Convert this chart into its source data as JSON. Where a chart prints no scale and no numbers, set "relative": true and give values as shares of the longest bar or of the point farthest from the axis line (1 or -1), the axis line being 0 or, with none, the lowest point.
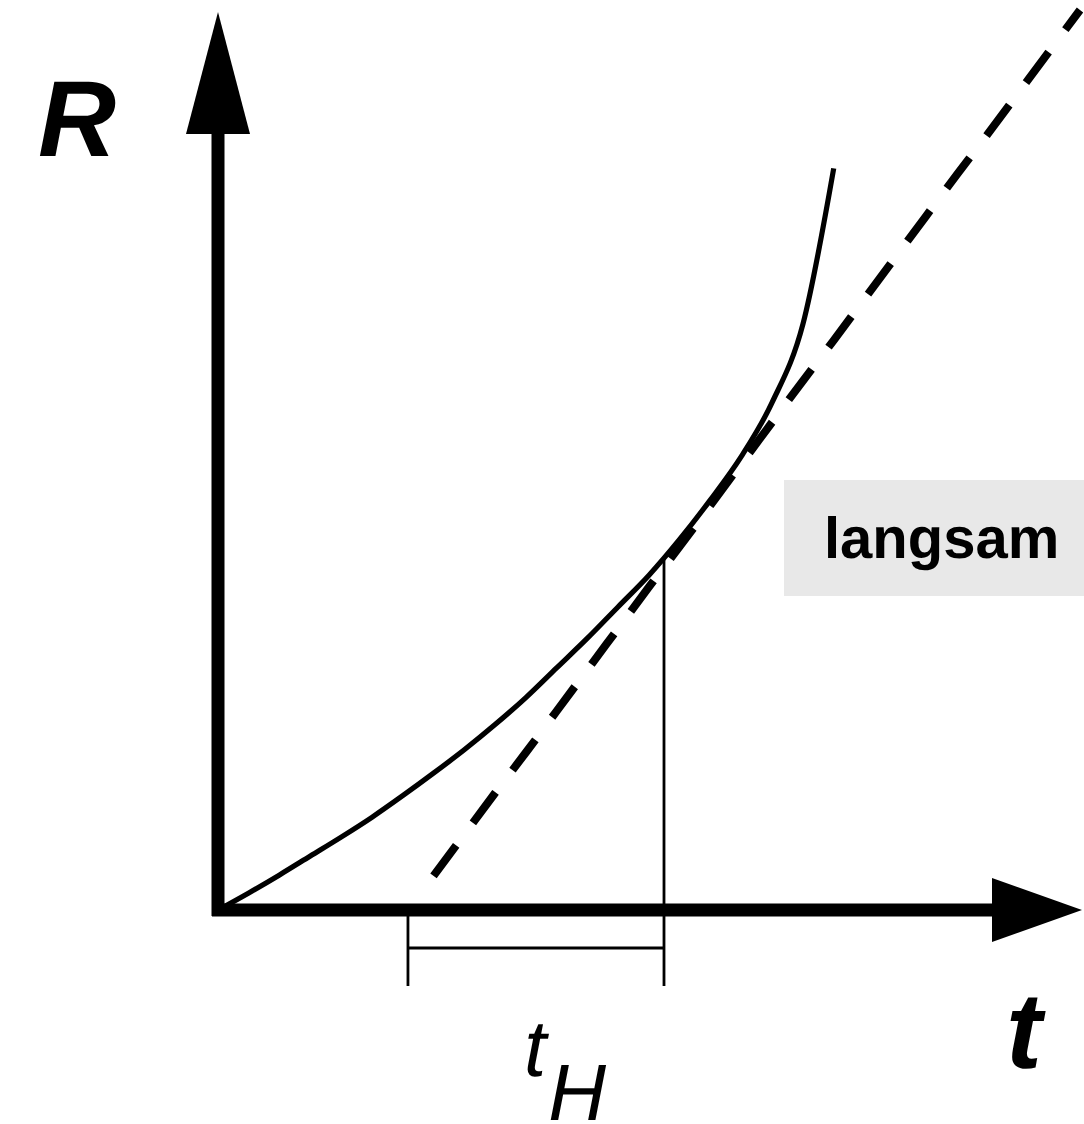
{
  "chart_data": {
    "type": "line",
    "relative": true,
    "xlabel": "t",
    "ylabel": "R",
    "categories": [
      null,
      null,
      null,
      null,
      null,
      null,
      null,
      null,
      null,
      null,
      null,
      null,
      null,
      null,
      null,
      null,
      null,
      null,
      null,
      null,
      null,
      null,
      null,
      null,
      null,
      null,
      null,
      null,
      null
    ],
    "series": [
      {
        "color": "#000000",
        "values": [
          0,
          0.019,
          0.039,
          0.06,
          0.081,
          0.103,
          0.127,
          0.152,
          0.178,
          0.206,
          0.236,
          0.269,
          0.302,
          0.337,
          0.372,
          0.412,
          0.456,
          0.504,
          0.564,
          0.651,
          0.824,
          null,
          null,
          null,
          null,
          null,
          null,
          null,
          null
        ]
      },
      {
        "color": "#000000",
        "line_style": "dashed",
        "values": [
          null,
          null,
          null,
          null,
          null,
          null,
          null,
          0.038,
          0.084,
          0.13,
          0.175,
          0.221,
          0.267,
          0.313,
          0.359,
          0.404,
          0.45,
          0.496,
          0.542,
          0.588,
          0.633,
          0.679,
          0.725,
          0.771,
          0.817,
          0.862,
          0.908,
          0.954,
          1.0
        ]
      }
    ],
    "annotations": [
      "t$_{H}$",
      "langsam"
    ]
  }
}
